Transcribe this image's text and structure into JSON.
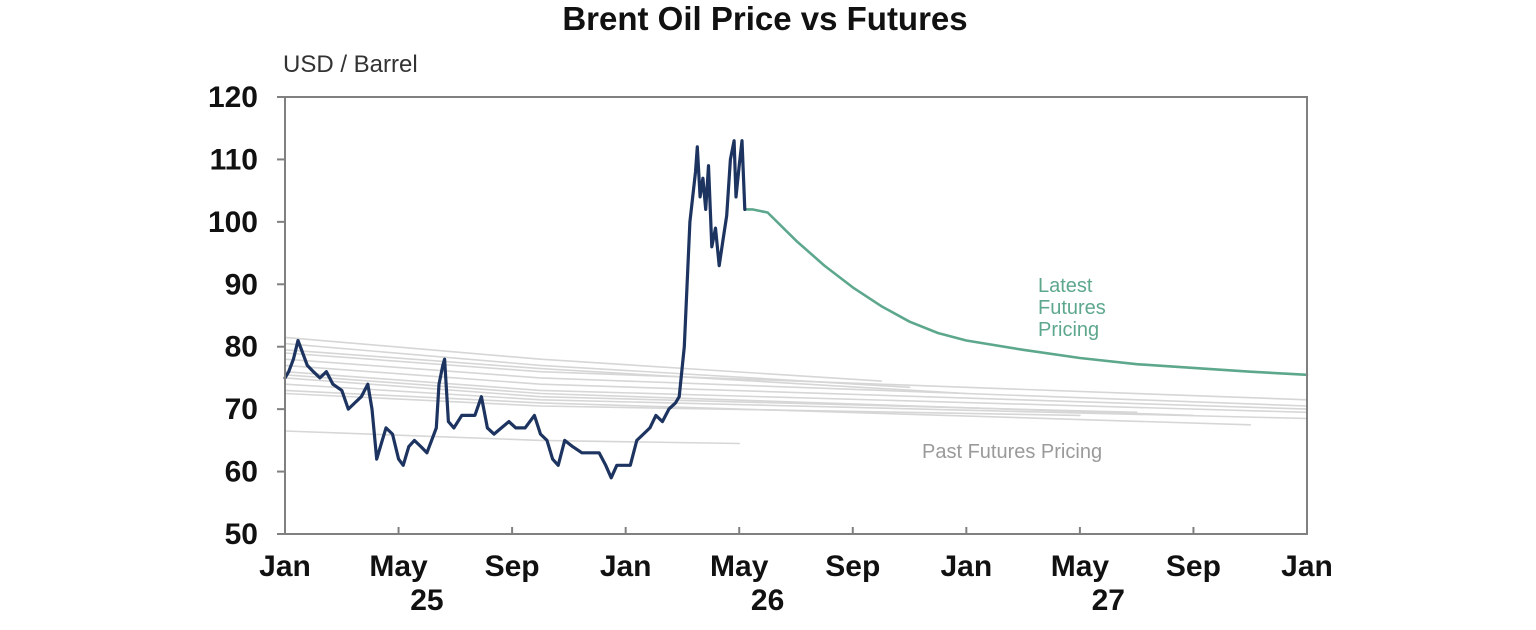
{
  "chart_data": {
    "type": "line",
    "title": "Brent Oil Price vs Futures",
    "ylabel": "USD / Barrel",
    "ylim": [
      50,
      120
    ],
    "yticks": [
      50,
      60,
      70,
      80,
      90,
      100,
      110,
      120
    ],
    "xlim_months": [
      "2025-01",
      "2027-01"
    ],
    "xticks": [
      {
        "label": "Jan",
        "month": "2025-01"
      },
      {
        "label": "May",
        "month": "2025-05"
      },
      {
        "label": "Sep",
        "month": "2025-09"
      },
      {
        "label": "Jan",
        "month": "2026-01"
      },
      {
        "label": "May",
        "month": "2026-05"
      },
      {
        "label": "Sep",
        "month": "2026-09"
      },
      {
        "label": "Jan",
        "month": "2027-01"
      },
      {
        "label": "May",
        "month": "2027-05"
      },
      {
        "label": "Sep",
        "month": "2027-09"
      },
      {
        "label": "Jan",
        "month": "2028-01"
      }
    ],
    "year_labels": [
      {
        "label": "25",
        "month": "2025-06"
      },
      {
        "label": "26",
        "month": "2026-06"
      },
      {
        "label": "27",
        "month": "2027-06"
      }
    ],
    "grid": false,
    "colors": {
      "spot": "#1d3461",
      "latest": "#5da88c",
      "past": "#d6d6d6"
    },
    "series": [
      {
        "role": "spot",
        "points": [
          [
            "2025-01-01",
            75
          ],
          [
            "2025-01-05",
            76
          ],
          [
            "2025-01-10",
            78
          ],
          [
            "2025-01-15",
            81
          ],
          [
            "2025-01-20",
            79
          ],
          [
            "2025-01-25",
            77
          ],
          [
            "2025-02-01",
            76
          ],
          [
            "2025-02-08",
            75
          ],
          [
            "2025-02-15",
            76
          ],
          [
            "2025-02-22",
            74
          ],
          [
            "2025-03-01",
            73
          ],
          [
            "2025-03-08",
            70
          ],
          [
            "2025-03-15",
            71
          ],
          [
            "2025-03-22",
            72
          ],
          [
            "2025-03-29",
            74
          ],
          [
            "2025-04-03",
            70
          ],
          [
            "2025-04-08",
            62
          ],
          [
            "2025-04-12",
            64
          ],
          [
            "2025-04-18",
            67
          ],
          [
            "2025-04-25",
            66
          ],
          [
            "2025-05-01",
            62
          ],
          [
            "2025-05-06",
            61
          ],
          [
            "2025-05-12",
            64
          ],
          [
            "2025-05-18",
            65
          ],
          [
            "2025-05-25",
            64
          ],
          [
            "2025-06-01",
            63
          ],
          [
            "2025-06-06",
            65
          ],
          [
            "2025-06-11",
            67
          ],
          [
            "2025-06-14",
            74
          ],
          [
            "2025-06-18",
            77
          ],
          [
            "2025-06-20",
            78
          ],
          [
            "2025-06-24",
            68
          ],
          [
            "2025-06-30",
            67
          ],
          [
            "2025-07-08",
            69
          ],
          [
            "2025-07-15",
            69
          ],
          [
            "2025-07-22",
            69
          ],
          [
            "2025-07-29",
            72
          ],
          [
            "2025-08-05",
            67
          ],
          [
            "2025-08-12",
            66
          ],
          [
            "2025-08-20",
            67
          ],
          [
            "2025-08-28",
            68
          ],
          [
            "2025-09-05",
            67
          ],
          [
            "2025-09-15",
            67
          ],
          [
            "2025-09-25",
            69
          ],
          [
            "2025-10-01",
            66
          ],
          [
            "2025-10-08",
            65
          ],
          [
            "2025-10-14",
            62
          ],
          [
            "2025-10-20",
            61
          ],
          [
            "2025-10-27",
            65
          ],
          [
            "2025-11-05",
            64
          ],
          [
            "2025-11-15",
            63
          ],
          [
            "2025-11-25",
            63
          ],
          [
            "2025-12-03",
            63
          ],
          [
            "2025-12-10",
            61
          ],
          [
            "2025-12-16",
            59
          ],
          [
            "2025-12-22",
            61
          ],
          [
            "2025-12-30",
            61
          ],
          [
            "2026-01-06",
            61
          ],
          [
            "2026-01-13",
            65
          ],
          [
            "2026-01-20",
            66
          ],
          [
            "2026-01-27",
            67
          ],
          [
            "2026-02-03",
            69
          ],
          [
            "2026-02-10",
            68
          ],
          [
            "2026-02-17",
            70
          ],
          [
            "2026-02-24",
            71
          ],
          [
            "2026-02-28",
            72
          ],
          [
            "2026-03-03",
            80
          ],
          [
            "2026-03-06",
            90
          ],
          [
            "2026-03-09",
            100
          ],
          [
            "2026-03-12",
            104
          ],
          [
            "2026-03-15",
            108
          ],
          [
            "2026-03-17",
            112
          ],
          [
            "2026-03-20",
            104
          ],
          [
            "2026-03-23",
            107
          ],
          [
            "2026-03-26",
            102
          ],
          [
            "2026-03-29",
            109
          ],
          [
            "2026-04-02",
            96
          ],
          [
            "2026-04-06",
            99
          ],
          [
            "2026-04-10",
            93
          ],
          [
            "2026-04-14",
            97
          ],
          [
            "2026-04-18",
            101
          ],
          [
            "2026-04-22",
            110
          ],
          [
            "2026-04-26",
            113
          ],
          [
            "2026-04-28",
            104
          ],
          [
            "2026-05-01",
            109
          ],
          [
            "2026-05-04",
            113
          ],
          [
            "2026-05-07",
            102
          ]
        ]
      },
      {
        "role": "latest",
        "points": [
          [
            "2026-05-07",
            102
          ],
          [
            "2026-05-15",
            102
          ],
          [
            "2026-06-01",
            101.5
          ],
          [
            "2026-07-01",
            97
          ],
          [
            "2026-08-01",
            93
          ],
          [
            "2026-09-01",
            89.5
          ],
          [
            "2026-10-01",
            86.5
          ],
          [
            "2026-11-01",
            84
          ],
          [
            "2026-12-01",
            82.2
          ],
          [
            "2027-01-01",
            81
          ],
          [
            "2027-03-01",
            79.5
          ],
          [
            "2027-05-01",
            78.2
          ],
          [
            "2027-07-01",
            77.2
          ],
          [
            "2027-09-01",
            76.6
          ],
          [
            "2027-11-01",
            76
          ],
          [
            "2028-01-01",
            75.5
          ]
        ]
      },
      {
        "role": "past",
        "points": [
          [
            "2025-01-01",
            81.5
          ],
          [
            "2025-10-01",
            78
          ],
          [
            "2026-10-01",
            74.5
          ]
        ]
      },
      {
        "role": "past",
        "points": [
          [
            "2025-01-01",
            80.5
          ],
          [
            "2025-10-01",
            77
          ],
          [
            "2026-11-01",
            73.5
          ]
        ]
      },
      {
        "role": "past",
        "points": [
          [
            "2025-01-01",
            79.5
          ],
          [
            "2025-10-01",
            76.5
          ],
          [
            "2027-01-01",
            72.5
          ]
        ]
      },
      {
        "role": "past",
        "points": [
          [
            "2025-01-01",
            79
          ],
          [
            "2025-10-01",
            76
          ],
          [
            "2028-01-01",
            71.5
          ]
        ]
      },
      {
        "role": "past",
        "points": [
          [
            "2025-01-01",
            78
          ],
          [
            "2025-10-01",
            75
          ],
          [
            "2028-01-01",
            70.5
          ]
        ]
      },
      {
        "role": "past",
        "points": [
          [
            "2025-01-01",
            77
          ],
          [
            "2025-10-01",
            74
          ],
          [
            "2028-01-01",
            70
          ]
        ]
      },
      {
        "role": "past",
        "points": [
          [
            "2025-01-01",
            76
          ],
          [
            "2025-10-01",
            73
          ],
          [
            "2028-01-01",
            69.5
          ]
        ]
      },
      {
        "role": "past",
        "points": [
          [
            "2025-01-01",
            75.5
          ],
          [
            "2025-10-01",
            72.5
          ],
          [
            "2027-09-01",
            69
          ]
        ]
      },
      {
        "role": "past",
        "points": [
          [
            "2025-01-01",
            75
          ],
          [
            "2025-10-01",
            72
          ],
          [
            "2027-07-01",
            69.5
          ]
        ]
      },
      {
        "role": "past",
        "points": [
          [
            "2025-01-01",
            74
          ],
          [
            "2025-10-01",
            71.5
          ],
          [
            "2028-01-01",
            68.5
          ]
        ]
      },
      {
        "role": "past",
        "points": [
          [
            "2025-01-01",
            73
          ],
          [
            "2025-10-01",
            71
          ],
          [
            "2027-11-01",
            67.5
          ]
        ]
      },
      {
        "role": "past",
        "points": [
          [
            "2025-01-01",
            72.5
          ],
          [
            "2025-10-01",
            70.5
          ],
          [
            "2027-05-01",
            69
          ]
        ]
      },
      {
        "role": "past",
        "points": [
          [
            "2025-01-01",
            66.5
          ],
          [
            "2025-10-01",
            65
          ],
          [
            "2026-05-01",
            64.5
          ]
        ]
      }
    ],
    "annotations": [
      {
        "text": "Latest Futures Pricing",
        "lines": [
          "Latest",
          "Futures",
          "Pricing"
        ]
      },
      {
        "text": "Past Futures Pricing"
      }
    ]
  }
}
